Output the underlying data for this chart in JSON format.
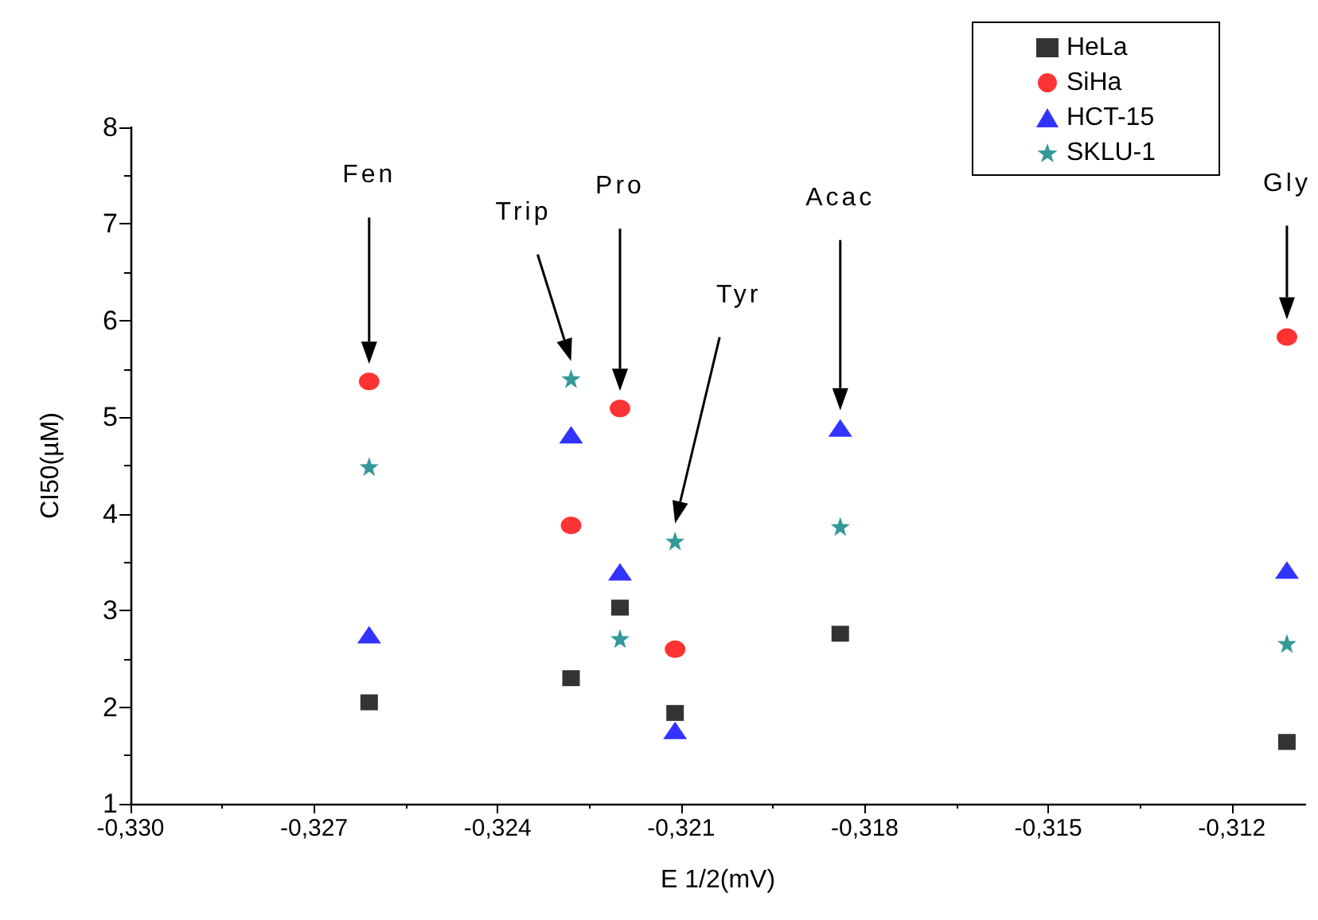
{
  "chart_data": {
    "type": "scatter",
    "xlabel": "E 1/2(mV)",
    "ylabel": "CI50(µM)",
    "xlim": [
      -0.33,
      -0.3108
    ],
    "ylim": [
      1,
      8
    ],
    "xticks": [
      {
        "value": -0.33,
        "label": "-0,330"
      },
      {
        "value": -0.327,
        "label": "-0,327"
      },
      {
        "value": -0.324,
        "label": "-0,324"
      },
      {
        "value": -0.321,
        "label": "-0,321"
      },
      {
        "value": -0.318,
        "label": "-0,318"
      },
      {
        "value": -0.315,
        "label": "-0,315"
      },
      {
        "value": -0.312,
        "label": "-0,312"
      }
    ],
    "yticks": [
      1,
      2,
      3,
      4,
      5,
      6,
      7,
      8
    ],
    "grid": false,
    "legend": "top right",
    "series": [
      {
        "name": "HeLa",
        "color": "#000000",
        "marker": "square",
        "x": [
          -0.3261,
          -0.3228,
          -0.322,
          -0.3211,
          -0.3184,
          -0.3111
        ],
        "values": [
          2.05,
          2.3,
          3.03,
          1.94,
          2.76,
          1.64
        ]
      },
      {
        "name": "SiHa",
        "color": "#ff0000",
        "marker": "circle",
        "x": [
          -0.3261,
          -0.3228,
          -0.322,
          -0.3211,
          -0.3111
        ],
        "values": [
          5.37,
          3.88,
          5.09,
          2.6,
          5.83
        ]
      },
      {
        "name": "HCT-15",
        "color": "#0000ff",
        "marker": "triangle",
        "x": [
          -0.3261,
          -0.3228,
          -0.322,
          -0.3211,
          -0.3184,
          -0.3111
        ],
        "values": [
          2.75,
          4.82,
          3.4,
          1.76,
          4.89,
          3.42
        ]
      },
      {
        "name": "SKLU-1",
        "color": "#008080",
        "marker": "star",
        "x": [
          -0.3261,
          -0.3228,
          -0.322,
          -0.3211,
          -0.3184,
          -0.3111
        ],
        "values": [
          4.49,
          5.4,
          2.71,
          3.72,
          3.87,
          2.66
        ]
      }
    ],
    "annotations": [
      "Fen",
      "Trip",
      "Pro",
      "Tyr",
      "Acac",
      "Gly"
    ]
  }
}
